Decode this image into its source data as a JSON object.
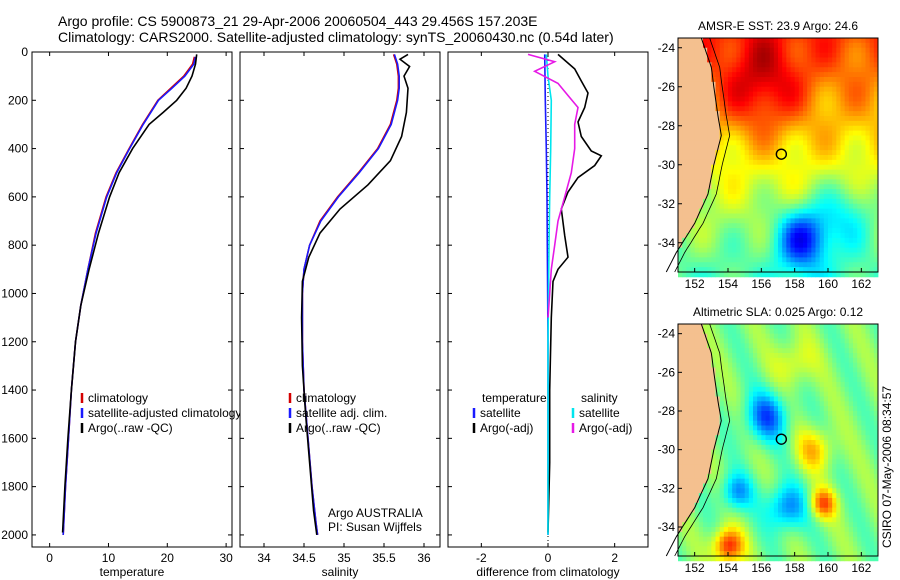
{
  "header": {
    "line1": "Argo profile: CS 5900873_21 29-Apr-2006 20060504_443 29.456S 157.203E",
    "line2": "Climatology: CARS2000. Satellite-adjusted climatology: synTS_20060430.nc (0.54d later)"
  },
  "colors": {
    "climatology": "#d40000",
    "satellite": "#1a1aff",
    "argo": "#000000",
    "sal_sat": "#00e5ee",
    "sal_argo": "#e619e6"
  },
  "chart_data": [
    {
      "type": "line",
      "id": "temperature",
      "xlabel": "temperature",
      "ylabel": "",
      "xlim": [
        -3,
        31
      ],
      "ylim": [
        2050,
        0
      ],
      "y_reversed": true,
      "xticks": [
        0,
        10,
        20,
        30
      ],
      "yticks": [
        0,
        200,
        400,
        600,
        800,
        1000,
        1200,
        1400,
        1600,
        1800,
        2000
      ],
      "legend": [
        "climatology",
        "satellite-adjusted climatology",
        "Argo(..raw -QC)"
      ],
      "series": [
        {
          "name": "climatology",
          "x": [
            24.6,
            24.3,
            22.8,
            20.6,
            18.4,
            15.8,
            13.5,
            11.3,
            9.6,
            7.8,
            6.5,
            5.3,
            4.4,
            3.7,
            3.2,
            2.7,
            2.3
          ],
          "y": [
            20,
            50,
            100,
            150,
            200,
            300,
            400,
            500,
            600,
            750,
            900,
            1050,
            1200,
            1400,
            1600,
            1800,
            2000
          ]
        },
        {
          "name": "satellite",
          "x": [
            24.8,
            24.5,
            23.0,
            20.8,
            18.5,
            15.9,
            13.6,
            11.4,
            9.7,
            7.9,
            6.5,
            5.3,
            4.4,
            3.7,
            3.2,
            2.7,
            2.3
          ],
          "y": [
            20,
            50,
            100,
            150,
            200,
            300,
            400,
            500,
            600,
            750,
            900,
            1050,
            1200,
            1400,
            1600,
            1800,
            2000
          ]
        },
        {
          "name": "argo",
          "x": [
            25.0,
            24.8,
            24.2,
            23.2,
            21.6,
            19.3,
            16.9,
            14.1,
            11.8,
            10.2,
            8.3,
            6.7,
            5.3,
            4.4,
            3.7,
            3.1,
            2.6,
            2.2
          ],
          "y": [
            10,
            50,
            100,
            150,
            200,
            250,
            300,
            400,
            500,
            600,
            750,
            900,
            1050,
            1200,
            1400,
            1600,
            1800,
            1990
          ]
        }
      ]
    },
    {
      "type": "line",
      "id": "salinity",
      "xlabel": "salinity",
      "xlim": [
        33.7,
        36.2
      ],
      "ylim": [
        2050,
        0
      ],
      "y_reversed": true,
      "xticks": [
        34,
        34.5,
        35,
        35.5,
        36
      ],
      "legend": [
        "climatology",
        "satellite adj. clim.",
        "Argo(..raw -QC)"
      ],
      "annotation": [
        "Argo AUSTRALIA",
        "PI: Susan Wijffels"
      ],
      "series": [
        {
          "name": "climatology",
          "x": [
            35.62,
            35.66,
            35.68,
            35.68,
            35.66,
            35.58,
            35.42,
            35.18,
            34.92,
            34.7,
            34.57,
            34.5,
            34.48,
            34.48,
            34.5,
            34.55,
            34.6,
            34.65,
            34.67
          ],
          "y": [
            10,
            50,
            100,
            150,
            200,
            300,
            400,
            500,
            600,
            700,
            800,
            900,
            1000,
            1200,
            1400,
            1600,
            1800,
            1950,
            2000
          ]
        },
        {
          "name": "satellite",
          "x": [
            35.63,
            35.67,
            35.69,
            35.69,
            35.67,
            35.59,
            35.43,
            35.19,
            34.93,
            34.71,
            34.57,
            34.5,
            34.48,
            34.48,
            34.5,
            34.55,
            34.6,
            34.65,
            34.67
          ],
          "y": [
            10,
            50,
            100,
            150,
            200,
            300,
            400,
            500,
            600,
            700,
            800,
            900,
            1000,
            1200,
            1400,
            1600,
            1800,
            1950,
            2000
          ]
        },
        {
          "name": "argo",
          "x": [
            35.8,
            35.7,
            35.82,
            35.75,
            35.8,
            35.78,
            35.72,
            35.58,
            35.3,
            34.95,
            34.7,
            34.56,
            34.48,
            34.47,
            34.48,
            34.52,
            34.57,
            34.62,
            34.66
          ],
          "y": [
            10,
            30,
            60,
            100,
            150,
            250,
            350,
            450,
            550,
            650,
            750,
            850,
            950,
            1100,
            1300,
            1500,
            1700,
            1900,
            2000
          ]
        }
      ]
    },
    {
      "type": "line",
      "id": "difference",
      "xlabel": "difference from climatology",
      "xlim": [
        -3,
        3
      ],
      "ylim": [
        2050,
        0
      ],
      "y_reversed": true,
      "xticks": [
        -2,
        0,
        2
      ],
      "legend": [
        "temperature",
        "satellite",
        "Argo(-adj)",
        "salinity",
        "satellite",
        "Argo(-adj)"
      ],
      "series": [
        {
          "name": "temperature satellite",
          "x": [
            -0.1,
            -0.08,
            -0.05,
            -0.03,
            -0.02,
            0,
            0,
            0
          ],
          "y": [
            10,
            200,
            400,
            600,
            800,
            1200,
            1600,
            2000
          ]
        },
        {
          "name": "temperature argo",
          "x": [
            0.3,
            0.8,
            1.0,
            1.2,
            1.1,
            0.9,
            1.0,
            1.3,
            1.6,
            1.4,
            0.9,
            0.6,
            0.4,
            0.5,
            0.6,
            0.3,
            0.15,
            0.1,
            0.05,
            0.05,
            0
          ],
          "y": [
            10,
            70,
            120,
            170,
            230,
            290,
            350,
            410,
            430,
            470,
            520,
            580,
            650,
            760,
            850,
            900,
            950,
            1100,
            1400,
            1700,
            1990
          ]
        },
        {
          "name": "salinity satellite",
          "x": [
            -0.05,
            0,
            0.1,
            0.08,
            0.05,
            0.03,
            0,
            0,
            0
          ],
          "y": [
            10,
            100,
            200,
            400,
            600,
            800,
            1200,
            1600,
            2000
          ]
        },
        {
          "name": "salinity argo",
          "x": [
            -0.6,
            0.2,
            -0.4,
            0.3,
            0.6,
            0.9,
            0.8,
            0.8,
            0.7,
            0.5,
            0.3,
            0.2,
            0.1,
            0.05,
            0
          ],
          "y": [
            10,
            40,
            80,
            130,
            180,
            230,
            300,
            400,
            500,
            600,
            700,
            800,
            900,
            1000,
            1100
          ]
        }
      ]
    },
    {
      "type": "heatmap",
      "id": "sst-map",
      "title": "AMSR-E SST: 23.9 Argo: 24.6",
      "xlim": [
        151,
        163
      ],
      "ylim": [
        -35.5,
        -23.5
      ],
      "xticks": [
        152,
        154,
        156,
        158,
        160,
        162
      ],
      "yticks": [
        -24,
        -26,
        -28,
        -30,
        -32,
        -34
      ],
      "float_position": [
        157.2,
        -29.456
      ]
    },
    {
      "type": "heatmap",
      "id": "sla-map",
      "title": "Altimetric SLA: 0.025 Argo: 0.12",
      "xlim": [
        151,
        163
      ],
      "ylim": [
        -35.5,
        -23.5
      ],
      "xticks": [
        152,
        154,
        156,
        158,
        160,
        162
      ],
      "yticks": [
        -24,
        -26,
        -28,
        -30,
        -32,
        -34
      ],
      "float_position": [
        157.2,
        -29.456
      ]
    }
  ],
  "footer": {
    "stamp": "CSIRO 07-May-2006 08:34:57"
  }
}
